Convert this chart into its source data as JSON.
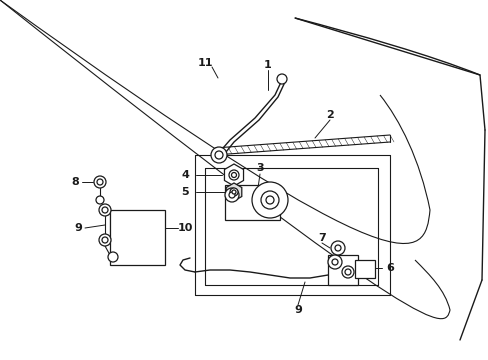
{
  "bg_color": "#ffffff",
  "line_color": "#1a1a1a",
  "lw": 0.9,
  "fig_width": 4.89,
  "fig_height": 3.6,
  "dpi": 100
}
